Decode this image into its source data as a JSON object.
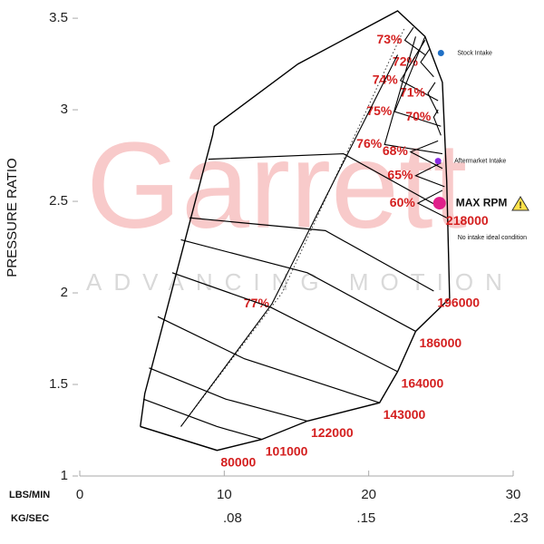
{
  "chart_data": {
    "type": "compressor_map",
    "watermark": "Garrett",
    "watermark_tagline": "ADVANCING MOTION",
    "ylabel": "PRESSURE RATIO",
    "xlabel": "LBS/MIN",
    "x2label": "KG/SEC",
    "xlim": [
      0,
      30
    ],
    "xticks": [
      0,
      10,
      20,
      30
    ],
    "x2lim": [
      0,
      0.227
    ],
    "x2ticks": [
      {
        "value": 0.08,
        "label": ".08"
      },
      {
        "value": 0.15,
        "label": ".15"
      },
      {
        "value": 0.23,
        "label": ".23"
      }
    ],
    "ylim": [
      1,
      3.55
    ],
    "yticks": [
      1,
      1.5,
      2,
      2.5,
      3,
      3.5
    ],
    "map_outline": {
      "x": [
        4.19,
        4.5,
        9.19,
        9.31,
        15.1,
        22,
        23.9,
        25.1,
        25.4,
        25.6,
        23.25,
        22,
        20.75,
        15.75,
        12.6,
        9.5,
        4.19
      ],
      "y": [
        1.27,
        1.45,
        2.86,
        2.91,
        3.25,
        3.54,
        3.4,
        3.15,
        2.61,
        1.97,
        1.79,
        1.57,
        1.4,
        1.3,
        1.2,
        1.14,
        1.27
      ]
    },
    "speed_lines": [
      {
        "name": "80000",
        "x": [
          4.19,
          9.5
        ],
        "y": [
          1.27,
          1.14
        ]
      },
      {
        "name": "101000",
        "x": [
          4.4,
          9.5,
          12.6
        ],
        "y": [
          1.42,
          1.27,
          1.2
        ]
      },
      {
        "name": "122000",
        "x": [
          4.8,
          10.1,
          15.75
        ],
        "y": [
          1.59,
          1.42,
          1.3
        ]
      },
      {
        "name": "143000",
        "x": [
          5.4,
          11.4,
          20.75
        ],
        "y": [
          1.87,
          1.64,
          1.4
        ]
      },
      {
        "name": "164000",
        "x": [
          6.4,
          13.25,
          22
        ],
        "y": [
          2.11,
          1.92,
          1.57
        ]
      },
      {
        "name": "186000",
        "x": [
          7,
          15.75,
          23.25
        ],
        "y": [
          2.29,
          2.11,
          1.79
        ]
      },
      {
        "name": "196000",
        "x": [
          7.6,
          17,
          24.5
        ],
        "y": [
          2.41,
          2.34,
          2.01
        ]
      },
      {
        "name": "218000",
        "x": [
          8.9,
          18.25,
          25.1
        ],
        "y": [
          2.73,
          2.76,
          2.46
        ]
      }
    ],
    "efficiency_islands": [
      {
        "name": "73%",
        "x": [
          23.1,
          22.5,
          23.9
        ],
        "y": [
          3.45,
          3.38,
          3.3
        ]
      },
      {
        "name": "72%",
        "x": [
          24.2,
          23.6,
          24.5
        ],
        "y": [
          3.33,
          3.26,
          3.18
        ]
      },
      {
        "name": "74%",
        "x": [
          23.9,
          22.2,
          24.8
        ],
        "y": [
          3.38,
          3.16,
          3.05
        ]
      },
      {
        "name": "71%",
        "x": [
          24.6,
          24.1,
          24.8
        ],
        "y": [
          3.15,
          3.09,
          2.98
        ]
      },
      {
        "name": "75%",
        "x": [
          23.9,
          21.8,
          25
        ],
        "y": [
          3.4,
          2.99,
          2.91
        ]
      },
      {
        "name": "70%",
        "x": [
          24.8,
          24.5,
          25
        ],
        "y": [
          3.0,
          2.96,
          2.86
        ]
      },
      {
        "name": "76%",
        "x": [
          23.25,
          21.1,
          25.1
        ],
        "y": [
          3.4,
          2.81,
          2.76
        ]
      },
      {
        "name": "68%",
        "x": [
          24.8,
          22.9,
          25.1
        ],
        "y": [
          2.83,
          2.77,
          2.68
        ]
      },
      {
        "name": "65%",
        "x": [
          25,
          23.25,
          25.25
        ],
        "y": [
          2.71,
          2.64,
          2.58
        ]
      },
      {
        "name": "60%",
        "x": [
          25.1,
          23.4,
          25.4
        ],
        "y": [
          2.56,
          2.49,
          2.41
        ]
      },
      {
        "name": "77%",
        "x": [
          22,
          13.3,
          7
        ],
        "y": [
          3.3,
          1.94,
          1.27
        ]
      }
    ],
    "peak_efficiency_line": {
      "x": [
        7,
        14,
        22.5
      ],
      "y": [
        1.27,
        2.0,
        3.45
      ]
    },
    "points": [
      {
        "name": "Stock Intake",
        "color": "#1f6fc5",
        "x": 25,
        "y": 3.31
      },
      {
        "name": "Aftermarket Intake",
        "color": "#8a2be2",
        "x": 24.8,
        "y": 2.72
      },
      {
        "name": "MAX RPM",
        "color": "#e0208a",
        "x": 24.9,
        "y": 2.49
      }
    ],
    "max_rpm_note": "No intake ideal condition"
  }
}
